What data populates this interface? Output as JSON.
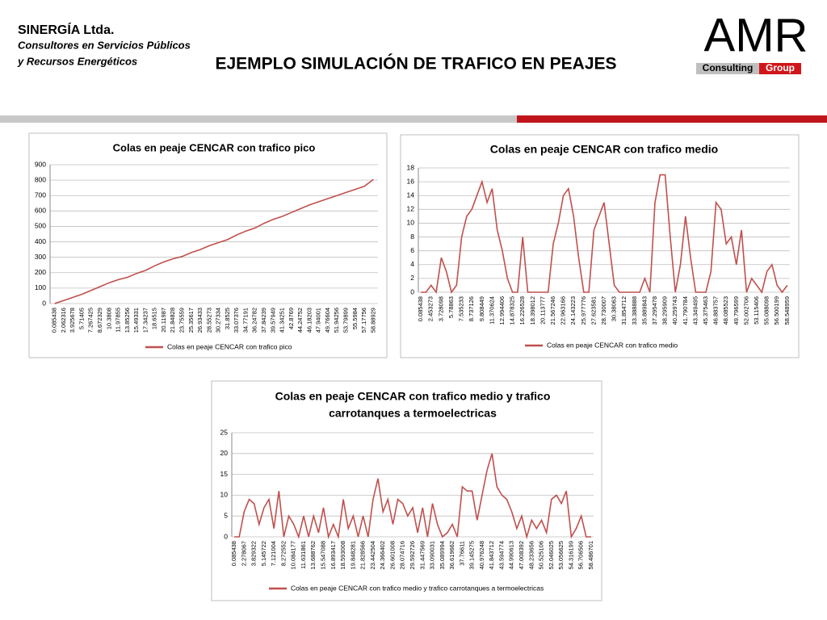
{
  "header": {
    "company": "SINERGÍA Ltda.",
    "subtitle_lines": [
      "Consultores en Servicios Públicos",
      "y Recursos Energéticos"
    ],
    "title": "EJEMPLO SIMULACIÓN DE TRAFICO EN PEAJES",
    "logo": {
      "main": "AMR",
      "left": "Consulting",
      "right": "Group"
    }
  },
  "chart_data": [
    {
      "type": "line",
      "title": [
        "Colas en peaje CENCAR con trafico pico"
      ],
      "categories": [
        "0.085438",
        "2.062316",
        "3.925678",
        "5.71405",
        "7.267425",
        "8.672329",
        "10.3808",
        "11.97855",
        "13.85256",
        "15.49331",
        "17.34237",
        "18.6515",
        "20.11987",
        "21.84828",
        "23.75559",
        "25.35617",
        "26.93433",
        "28.55273",
        "30.27334",
        "31.8525",
        "33.07376",
        "34.77191",
        "36.24782",
        "37.84239",
        "39.57949",
        "41.34251",
        "42.8769",
        "44.24752",
        "46.18203",
        "47.94001",
        "49.76604",
        "51.94256",
        "53.79899",
        "55.5984",
        "57.17756",
        "58.88929"
      ],
      "series": [
        {
          "name": "Colas en peaje CENCAR con trafico pico",
          "color": "#c0504d",
          "values": [
            0,
            20,
            40,
            60,
            85,
            110,
            135,
            155,
            170,
            195,
            215,
            245,
            270,
            290,
            305,
            330,
            350,
            375,
            395,
            415,
            445,
            470,
            490,
            520,
            545,
            565,
            590,
            615,
            640,
            660,
            680,
            700,
            720,
            740,
            760,
            805
          ]
        }
      ],
      "ylim": [
        0,
        900
      ],
      "yticks": [
        0,
        100,
        200,
        300,
        400,
        500,
        600,
        700,
        800,
        900
      ],
      "grid": true
    },
    {
      "type": "line",
      "title": [
        "Colas en peaje CENCAR con trafico medio"
      ],
      "categories": [
        "0.085438",
        null,
        "2.453273",
        null,
        "3.728098",
        null,
        "5.78863",
        null,
        "7.535233",
        null,
        "8.737126",
        null,
        "9.808449",
        null,
        "11.370624",
        null,
        "12.994406",
        null,
        "14.878325",
        null,
        "16.226528",
        null,
        "18.398012",
        null,
        "20.113777",
        null,
        "21.567246",
        null,
        "22.963166",
        null,
        "24.143223",
        null,
        "25.977776",
        null,
        "27.623581",
        null,
        "28.730007",
        null,
        "30.38063",
        null,
        "31.854712",
        null,
        "33.388888",
        null,
        "35.889843",
        null,
        "37.295478",
        null,
        "38.295909",
        null,
        "40.259743",
        null,
        "41.790784",
        null,
        "43.349495",
        null,
        "45.375463",
        null,
        "46.883757",
        null,
        "48.085523",
        null,
        "49.796599",
        null,
        "52.002706",
        null,
        "53.115406",
        null,
        "55.088098",
        null,
        "56.500199",
        null,
        "58.548959"
      ],
      "series": [
        {
          "name": "Colas en peaje CENCAR con trafico medio",
          "color": "#c0504d",
          "values": [
            0,
            0,
            1,
            0,
            5,
            3,
            0,
            1,
            8,
            11,
            12,
            14,
            16,
            13,
            15,
            9,
            6,
            2,
            0,
            0,
            8,
            0,
            0,
            0,
            0,
            0,
            7,
            10,
            14,
            15,
            11,
            5,
            0,
            0,
            9,
            11,
            13,
            7,
            1,
            0,
            0,
            0,
            0,
            0,
            2,
            0,
            13,
            17,
            17,
            8,
            0,
            4,
            11,
            5,
            0,
            0,
            0,
            3,
            13,
            12,
            7,
            8,
            4,
            9,
            0,
            2,
            1,
            0,
            3,
            4,
            1,
            0,
            1
          ]
        }
      ],
      "ylim": [
        0,
        18
      ],
      "yticks": [
        0,
        2,
        4,
        6,
        8,
        10,
        12,
        14,
        16,
        18
      ],
      "grid": true
    },
    {
      "type": "line",
      "title": [
        "Colas en peaje CENCAR con trafico medio y trafico",
        "carrotanques a termoelectricas"
      ],
      "categories": [
        "0.085438",
        null,
        "2.278067",
        null,
        "3.829322",
        null,
        "5.145722",
        null,
        "7.121004",
        null,
        "8.272552",
        null,
        "10.084177",
        null,
        "11.631861",
        null,
        "13.688762",
        null,
        "15.547088",
        null,
        "16.893417",
        null,
        "18.593008",
        null,
        "19.848281",
        null,
        "21.828566",
        null,
        "23.442504",
        null,
        "24.366402",
        null,
        "26.601008",
        null,
        "28.074716",
        null,
        "29.592726",
        null,
        "31.447569",
        null,
        "33.090031",
        null,
        "35.089994",
        null,
        "36.619662",
        null,
        "37.76611",
        null,
        "39.145275",
        null,
        "40.976248",
        null,
        "41.843712",
        null,
        "43.594774",
        null,
        "44.990613",
        null,
        "47.008392",
        null,
        "48.233656",
        null,
        "50.525106",
        null,
        "52.046025",
        null,
        "53.056625",
        null,
        "54.316199",
        null,
        "56.706506",
        null,
        "58.486701"
      ],
      "series": [
        {
          "name": "Colas en peaje CENCAR con trafico medio y trafico carrotanques a termoelectricas",
          "color": "#c0504d",
          "values": [
            0,
            0,
            6,
            9,
            8,
            3,
            7,
            9,
            2,
            11,
            0,
            5,
            3,
            0,
            5,
            0,
            5,
            1,
            7,
            0,
            3,
            0,
            9,
            2,
            5,
            0,
            5,
            0,
            9,
            14,
            6,
            9,
            3,
            9,
            8,
            5,
            7,
            1,
            7,
            0,
            8,
            3,
            0,
            1,
            3,
            0,
            12,
            11,
            11,
            4,
            10,
            16,
            20,
            12,
            10,
            9,
            6,
            2,
            5,
            0,
            4,
            2,
            4,
            1,
            9,
            10,
            8,
            11,
            0,
            2,
            5,
            0,
            0
          ]
        }
      ],
      "ylim": [
        0,
        25
      ],
      "yticks": [
        0,
        5,
        10,
        15,
        20,
        25
      ],
      "grid": true
    }
  ]
}
